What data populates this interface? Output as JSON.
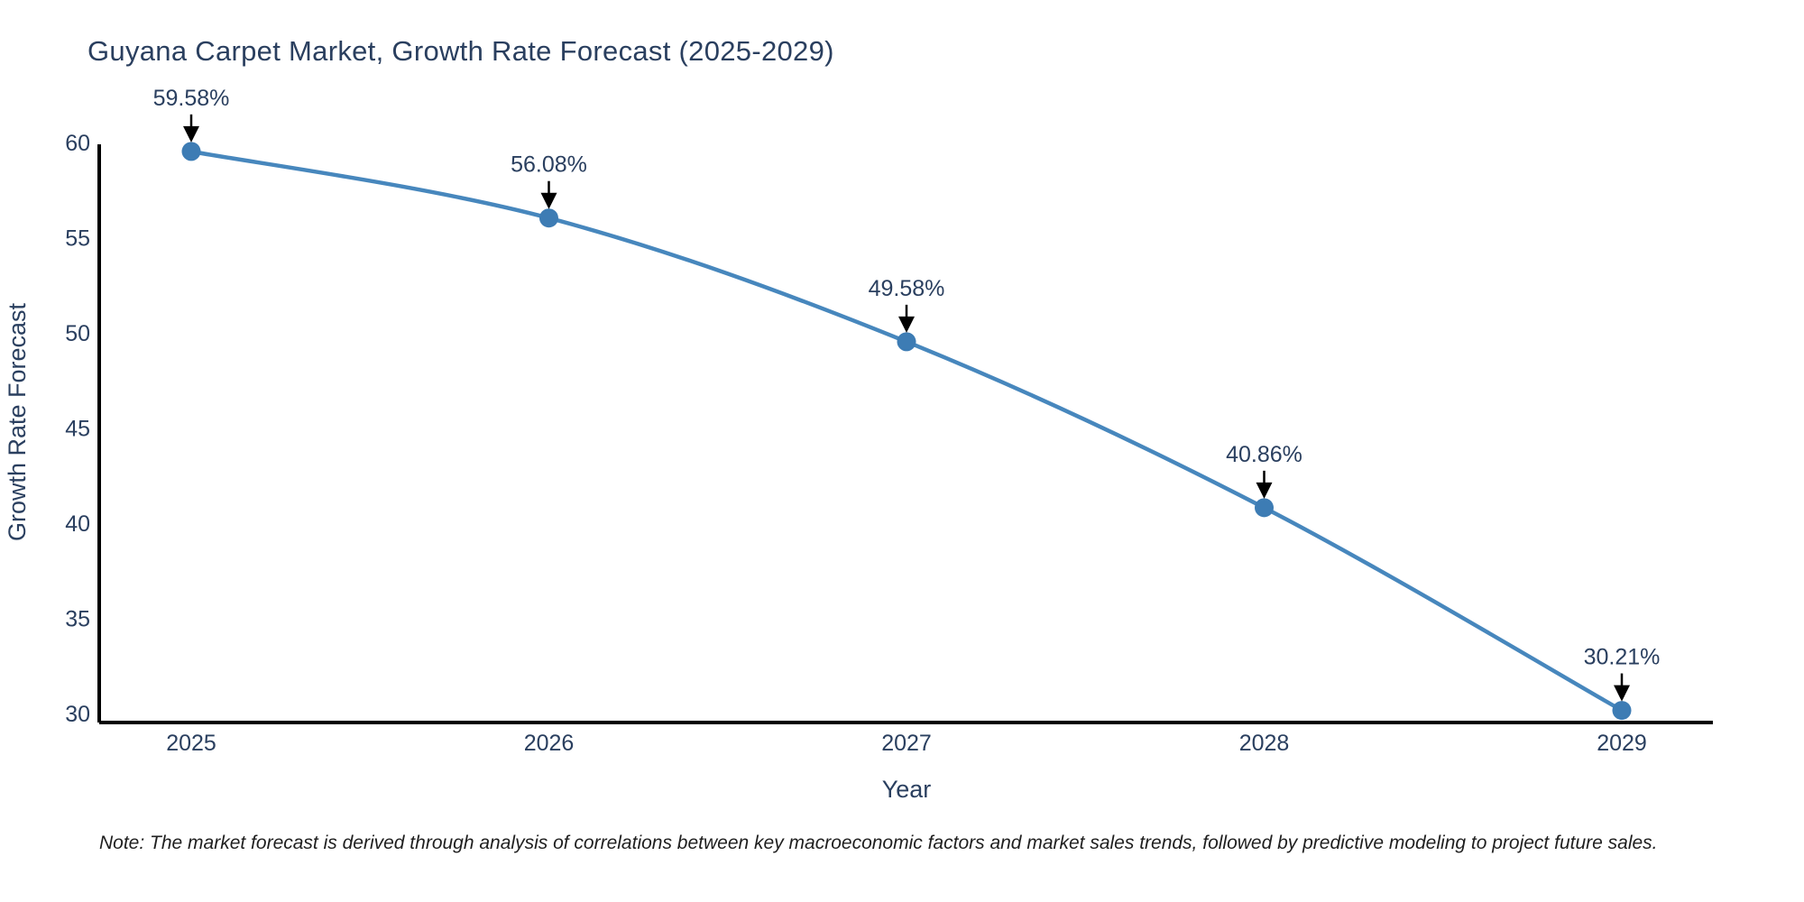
{
  "figure": {
    "note": "Note: The market forecast is derived through analysis of correlations between key macroeconomic factors and market sales trends, followed by predictive modeling to project future sales."
  },
  "chart_data": {
    "type": "line",
    "title": "Guyana Carpet Market, Growth Rate Forecast (2025-2029)",
    "xlabel": "Year",
    "ylabel": "Growth Rate Forecast",
    "x": [
      2025,
      2026,
      2027,
      2028,
      2029
    ],
    "y": [
      59.58,
      56.08,
      49.58,
      40.86,
      30.21
    ],
    "point_labels": [
      "59.58%",
      "56.08%",
      "49.58%",
      "40.86%",
      "30.21%"
    ],
    "x_tick_labels": [
      "2025",
      "2026",
      "2027",
      "2028",
      "2029"
    ],
    "y_ticks": [
      30,
      35,
      40,
      45,
      50,
      55,
      60
    ],
    "ylim": [
      29.6,
      60.1
    ],
    "grid": false,
    "legend": false,
    "line_shape": "spline",
    "annotations_have_arrows": true,
    "colors": {
      "line": "#4787bd",
      "marker": "#3d7cb4",
      "axis": "#000000",
      "text": "#2a3f5f",
      "annotation_arrow": "#000000",
      "note_text": "#1f1f1f",
      "background": "#ffffff"
    }
  }
}
